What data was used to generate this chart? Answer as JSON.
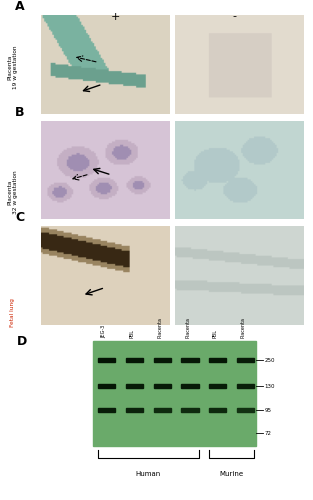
{
  "figure_bg": "#ffffff",
  "panel_labels": [
    "A",
    "B",
    "C",
    "D"
  ],
  "row_labels": [
    "Placenta\n19 w gestation",
    "Placenta\n32 w gestation",
    "Fetal lung"
  ],
  "row_label_colors": [
    "#000000",
    "#000000",
    "#cc2200"
  ],
  "col_labels": [
    "+",
    "-"
  ],
  "wb_labels": [
    "JEG-3",
    "PBL",
    "Placenta",
    "Placenta",
    "PBL",
    "Placenta"
  ],
  "wb_markers": [
    "250",
    "130",
    "95",
    "72"
  ],
  "human_label": "Human",
  "murine_label": "Murine",
  "wb_bg_color": "#6aaa6a",
  "wb_band_dark": "#0a1a0a",
  "wb_band_mid": "#1a3a1a"
}
